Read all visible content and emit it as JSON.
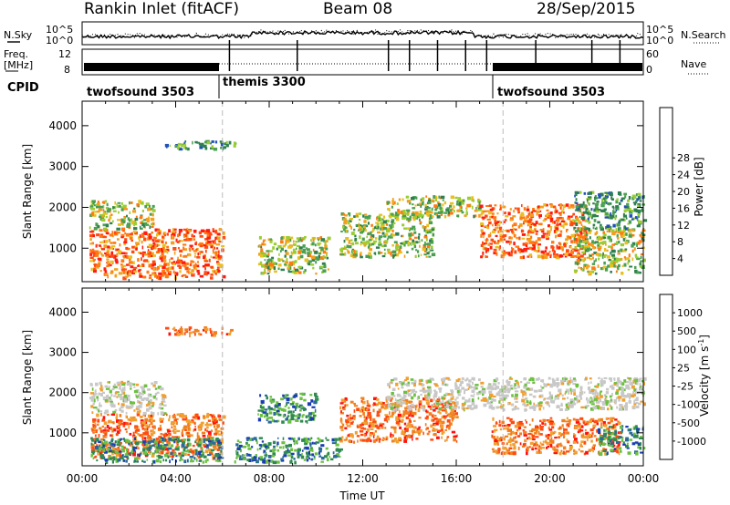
{
  "header": {
    "title": "Rankin Inlet (fitACF)",
    "beam": "Beam 08",
    "date": "28/Sep/2015"
  },
  "top_panels": {
    "nsky_label": "N.Sky",
    "nsearch_label": "N.Search",
    "noise_ticks": [
      "10^5",
      "10^0"
    ],
    "freq_label_1": "Freq.",
    "freq_label_2": "[MHz]",
    "freq_ticks": [
      "12",
      "8"
    ],
    "nave_label": "Nave",
    "nave_ticks": [
      "60",
      "0"
    ],
    "cpid_label": "CPID",
    "modes": [
      {
        "name": "twofsound 3503",
        "start_h": 0
      },
      {
        "name": "themis 3300",
        "start_h": 6
      },
      {
        "name": "twofsound 3503",
        "start_h": 18
      }
    ]
  },
  "chart_data": [
    {
      "type": "heatmap",
      "title": "",
      "ylabel": "Slant Range [km]",
      "xlabel": "",
      "xlim": [
        0,
        24
      ],
      "ylim": [
        180,
        4600
      ],
      "yticks": [
        1000,
        2000,
        3000,
        4000
      ],
      "colorbar": {
        "label": "Power [dB]",
        "ticks": [
          "4",
          "8",
          "12",
          "16",
          "20",
          "24",
          "28"
        ],
        "colors": [
          "#1a24e0",
          "#2050b8",
          "#2f8050",
          "#4aa050",
          "#9acd32",
          "#e8c020",
          "#f0a020",
          "#ff7a10",
          "#ff4a10",
          "#ff1a10"
        ]
      },
      "scatter_regions": [
        {
          "t0": 0.3,
          "t1": 6.0,
          "r0": 300,
          "r1": 1500,
          "level": "high"
        },
        {
          "t0": 0.3,
          "t1": 3.0,
          "r0": 1500,
          "r1": 2200,
          "level": "mid"
        },
        {
          "t0": 7.5,
          "t1": 10.5,
          "r0": 400,
          "r1": 1300,
          "level": "mid"
        },
        {
          "t0": 11.0,
          "t1": 15.0,
          "r0": 800,
          "r1": 1900,
          "level": "mid"
        },
        {
          "t0": 13.0,
          "t1": 17.0,
          "r0": 1800,
          "r1": 2300,
          "level": "mid"
        },
        {
          "t0": 17.0,
          "t1": 21.5,
          "r0": 800,
          "r1": 2100,
          "level": "high"
        },
        {
          "t0": 21.0,
          "t1": 24.0,
          "r0": 400,
          "r1": 1500,
          "level": "mid"
        },
        {
          "t0": 21.0,
          "t1": 24.0,
          "r0": 1500,
          "r1": 2400,
          "level": "low"
        },
        {
          "t0": 3.5,
          "t1": 6.5,
          "r0": 3450,
          "r1": 3650,
          "level": "low"
        }
      ]
    },
    {
      "type": "heatmap",
      "title": "",
      "ylabel": "Slant Range [km]",
      "xlabel": "Time UT",
      "xlim": [
        0,
        24
      ],
      "ylim": [
        180,
        4600
      ],
      "yticks": [
        1000,
        2000,
        3000,
        4000
      ],
      "xtick_labels": [
        "00:00",
        "04:00",
        "08:00",
        "12:00",
        "16:00",
        "20:00",
        "00:00"
      ],
      "colorbar": {
        "label": "Velocity [m s-1]",
        "ticks": [
          "1000",
          "500",
          "100",
          "25",
          "-25",
          "-100",
          "-500",
          "-1000"
        ],
        "colors": [
          "#1a3cb4",
          "#2a6a9a",
          "#2f8a50",
          "#6cc040",
          "#c8c8c8",
          "#f0a030",
          "#f08020",
          "#ff4a10",
          "#ff1010"
        ]
      },
      "scatter_regions": [
        {
          "t0": 0.3,
          "t1": 6.0,
          "r0": 400,
          "r1": 1500,
          "level": "neg"
        },
        {
          "t0": 0.3,
          "t1": 6.0,
          "r0": 300,
          "r1": 900,
          "level": "pos"
        },
        {
          "t0": 0.3,
          "t1": 3.5,
          "r0": 1500,
          "r1": 2300,
          "level": "gs"
        },
        {
          "t0": 7.5,
          "t1": 10.0,
          "r0": 1300,
          "r1": 2000,
          "level": "pos"
        },
        {
          "t0": 6.5,
          "t1": 11.0,
          "r0": 300,
          "r1": 900,
          "level": "pos"
        },
        {
          "t0": 11.0,
          "t1": 16.0,
          "r0": 800,
          "r1": 1900,
          "level": "neg"
        },
        {
          "t0": 13.0,
          "t1": 24.0,
          "r0": 1600,
          "r1": 2400,
          "level": "gs"
        },
        {
          "t0": 17.5,
          "t1": 23.0,
          "r0": 500,
          "r1": 1400,
          "level": "neg"
        },
        {
          "t0": 22.0,
          "t1": 24.0,
          "r0": 500,
          "r1": 1200,
          "level": "pos"
        },
        {
          "t0": 3.5,
          "t1": 6.5,
          "r0": 3450,
          "r1": 3650,
          "level": "neg"
        }
      ]
    }
  ]
}
